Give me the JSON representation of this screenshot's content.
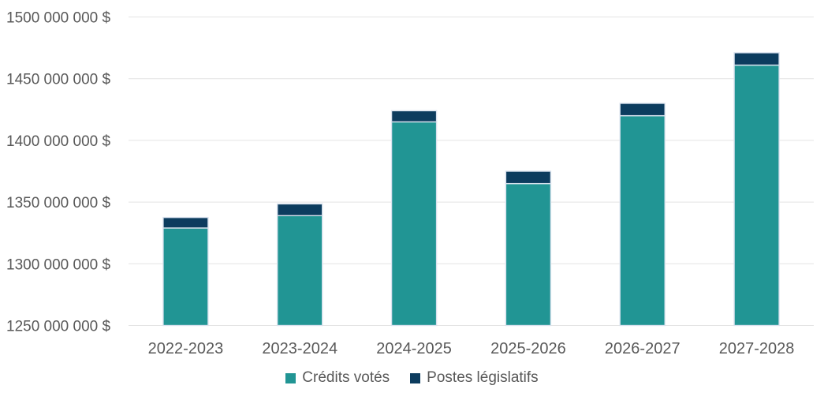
{
  "chart_data": {
    "type": "bar",
    "stacked": true,
    "title": "",
    "xlabel": "",
    "ylabel": "",
    "grid": true,
    "legend_position": "bottom",
    "categories": [
      "2022-2023",
      "2023-2024",
      "2024-2025",
      "2025-2026",
      "2026-2027",
      "2027-2028"
    ],
    "series": [
      {
        "id": "credits-votes",
        "name": "Crédits votés",
        "color": "#219594",
        "values": [
          1329000000,
          1339000000,
          1415000000,
          1365000000,
          1420000000,
          1461000000
        ]
      },
      {
        "id": "postes-legislatifs",
        "name": "Postes législatifs",
        "color": "#0C3C5E",
        "values": [
          8500000,
          9500000,
          9000000,
          10000000,
          10000000,
          10000000
        ]
      }
    ],
    "ylim": [
      1250000000,
      1500000000
    ],
    "y_ticks": [
      {
        "value": 1250000000,
        "label": "1250 000 000 $"
      },
      {
        "value": 1300000000,
        "label": "1300 000 000 $"
      },
      {
        "value": 1350000000,
        "label": "1350 000 000 $"
      },
      {
        "value": 1400000000,
        "label": "1400 000 000 $"
      },
      {
        "value": 1450000000,
        "label": "1450 000 000 $"
      },
      {
        "value": 1500000000,
        "label": "1500 000 000 $"
      }
    ],
    "bar_border_color": "#D9E2EE",
    "gridline_color": "#E4E4E4",
    "text_color": "#595959"
  }
}
